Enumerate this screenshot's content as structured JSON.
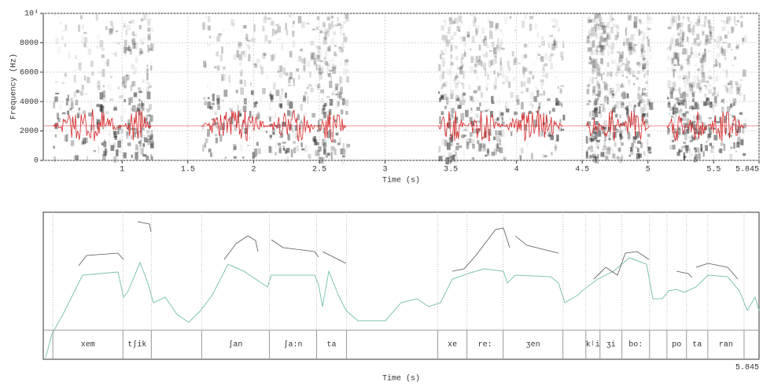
{
  "chart_data": [
    {
      "type": "spectrogram",
      "xlabel": "Time (s)",
      "ylabel": "Frequency (Hz)",
      "xlim": [
        0.4,
        5.845
      ],
      "xticks": [
        1,
        1.5,
        2,
        2.5,
        3,
        3.5,
        4,
        4.5,
        5,
        5.5,
        5.845
      ],
      "ylim": [
        0,
        10000
      ],
      "yticks": [
        0,
        2000,
        4000,
        6000,
        8000,
        {
          "value": 10000,
          "label": "10⁴"
        }
      ],
      "grid": true,
      "waveform_color": "#d62728"
    },
    {
      "type": "interval-tier",
      "xlabel": "Time (s)",
      "xlim": [
        0.4,
        5.845
      ],
      "xticks": [
        5.845
      ],
      "boundaries": [
        0.4,
        0.473,
        1.006,
        1.222,
        1.605,
        2.12,
        2.479,
        2.707,
        3.401,
        3.623,
        3.898,
        4.353,
        4.527,
        4.635,
        4.802,
        5.012,
        5.144,
        5.293,
        5.455,
        5.731,
        5.845
      ],
      "labels": [
        null,
        "xem",
        "tʃik",
        null,
        "ʃan",
        "ʃa:n",
        "ta",
        null,
        "xe",
        "re:",
        "ʒen",
        null,
        "kʲi",
        "ʒi",
        "bo:",
        null,
        "po",
        "ta",
        "ran",
        null
      ]
    }
  ]
}
